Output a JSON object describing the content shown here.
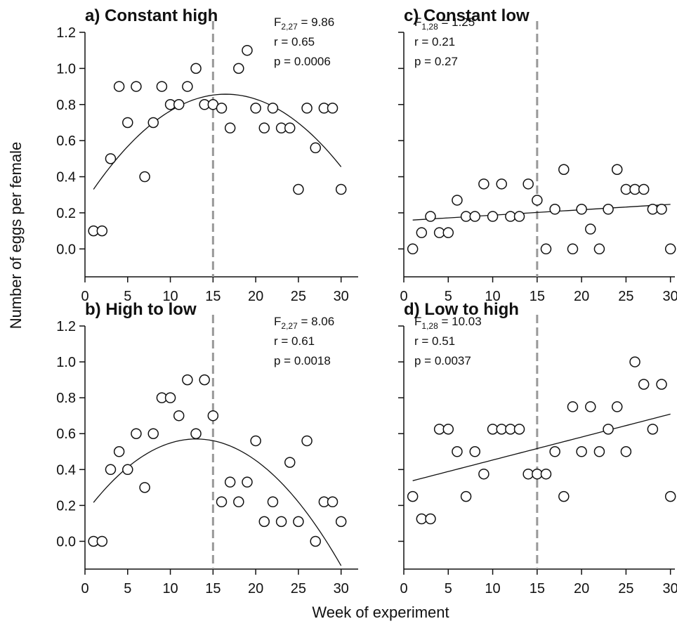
{
  "figure": {
    "ylabel": "Number of eggs per female",
    "xlabel": "Week of experiment"
  },
  "chart_data": [
    {
      "id": "a",
      "type": "scatter",
      "title": "a) Constant high",
      "stats": {
        "F_main": "F",
        "F_sub": "2,27",
        "F_val": " = 9.86",
        "r": "r = 0.65",
        "p": "p = 0.0006"
      },
      "xlim": [
        0,
        32
      ],
      "ylim": [
        -0.1,
        1.2
      ],
      "xticks": [
        0,
        5,
        10,
        15,
        20,
        25,
        30
      ],
      "yticks": [
        0.0,
        0.2,
        0.4,
        0.6,
        0.8,
        1.0,
        1.2
      ],
      "show_yticklabels": true,
      "vline_x": 15,
      "points": [
        [
          1,
          0.1
        ],
        [
          2,
          0.1
        ],
        [
          3,
          0.5
        ],
        [
          4,
          0.9
        ],
        [
          5,
          0.7
        ],
        [
          6,
          0.9
        ],
        [
          7,
          0.4
        ],
        [
          8,
          0.7
        ],
        [
          9,
          0.9
        ],
        [
          10,
          0.8
        ],
        [
          11,
          0.8
        ],
        [
          12,
          0.9
        ],
        [
          13,
          1.0
        ],
        [
          14,
          0.8
        ],
        [
          15,
          0.8
        ],
        [
          16,
          0.78
        ],
        [
          17,
          0.67
        ],
        [
          18,
          1.0
        ],
        [
          19,
          1.1
        ],
        [
          20,
          0.78
        ],
        [
          21,
          0.67
        ],
        [
          22,
          0.78
        ],
        [
          23,
          0.67
        ],
        [
          24,
          0.67
        ],
        [
          25,
          0.33
        ],
        [
          26,
          0.78
        ],
        [
          27,
          0.56
        ],
        [
          28,
          0.78
        ],
        [
          29,
          0.78
        ],
        [
          30,
          0.33
        ]
      ],
      "fit": {
        "kind": "quadratic",
        "coef": [
          0.26,
          0.0725,
          -0.0022
        ],
        "x_range": [
          1,
          30
        ]
      }
    },
    {
      "id": "c",
      "type": "scatter",
      "title": "c) Constant low",
      "stats": {
        "F_main": "F",
        "F_sub": "1,28",
        "F_val": " = 1.25",
        "r": "r = 0.21",
        "p": "p = 0.27"
      },
      "xlim": [
        0,
        30.5
      ],
      "ylim": [
        -0.1,
        1.2
      ],
      "xticks": [
        0,
        5,
        10,
        15,
        20,
        25,
        30
      ],
      "yticks": [
        0.0,
        0.2,
        0.4,
        0.6,
        0.8,
        1.0,
        1.2
      ],
      "show_yticklabels": false,
      "vline_x": 15,
      "points": [
        [
          1,
          0.0
        ],
        [
          2,
          0.09
        ],
        [
          3,
          0.18
        ],
        [
          4,
          0.09
        ],
        [
          5,
          0.09
        ],
        [
          6,
          0.27
        ],
        [
          7,
          0.18
        ],
        [
          8,
          0.18
        ],
        [
          9,
          0.36
        ],
        [
          10,
          0.18
        ],
        [
          11,
          0.36
        ],
        [
          12,
          0.18
        ],
        [
          13,
          0.18
        ],
        [
          14,
          0.36
        ],
        [
          15,
          0.27
        ],
        [
          16,
          0.0
        ],
        [
          17,
          0.22
        ],
        [
          18,
          0.44
        ],
        [
          19,
          0.0
        ],
        [
          20,
          0.22
        ],
        [
          21,
          0.11
        ],
        [
          22,
          0.0
        ],
        [
          23,
          0.22
        ],
        [
          24,
          0.44
        ],
        [
          25,
          0.33
        ],
        [
          26,
          0.33
        ],
        [
          27,
          0.33
        ],
        [
          28,
          0.22
        ],
        [
          29,
          0.22
        ],
        [
          30,
          0.0
        ]
      ],
      "fit": {
        "kind": "linear",
        "coef": [
          0.157,
          0.003
        ],
        "x_range": [
          1,
          30
        ]
      }
    },
    {
      "id": "b",
      "type": "scatter",
      "title": "b) High to low",
      "stats": {
        "F_main": "F",
        "F_sub": "2,27",
        "F_val": " = 8.06",
        "r": "r = 0.61",
        "p": "p = 0.0018"
      },
      "xlim": [
        0,
        32
      ],
      "ylim": [
        -0.1,
        1.2
      ],
      "xticks": [
        0,
        5,
        10,
        15,
        20,
        25,
        30
      ],
      "yticks": [
        0.0,
        0.2,
        0.4,
        0.6,
        0.8,
        1.0,
        1.2
      ],
      "show_yticklabels": true,
      "vline_x": 15,
      "points": [
        [
          1,
          0.0
        ],
        [
          2,
          0.0
        ],
        [
          3,
          0.4
        ],
        [
          4,
          0.5
        ],
        [
          5,
          0.4
        ],
        [
          6,
          0.6
        ],
        [
          7,
          0.3
        ],
        [
          8,
          0.6
        ],
        [
          9,
          0.8
        ],
        [
          10,
          0.8
        ],
        [
          11,
          0.7
        ],
        [
          12,
          0.9
        ],
        [
          13,
          0.6
        ],
        [
          14,
          0.9
        ],
        [
          15,
          0.7
        ],
        [
          16,
          0.22
        ],
        [
          17,
          0.33
        ],
        [
          18,
          0.22
        ],
        [
          19,
          0.33
        ],
        [
          20,
          0.56
        ],
        [
          21,
          0.11
        ],
        [
          22,
          0.22
        ],
        [
          23,
          0.11
        ],
        [
          24,
          0.44
        ],
        [
          25,
          0.11
        ],
        [
          26,
          0.56
        ],
        [
          27,
          0.0
        ],
        [
          28,
          0.22
        ],
        [
          29,
          0.22
        ],
        [
          30,
          0.11
        ]
      ],
      "fit": {
        "kind": "quadratic",
        "coef": [
          0.155,
          0.0638,
          -0.00245
        ],
        "x_range": [
          1,
          30
        ]
      }
    },
    {
      "id": "d",
      "type": "scatter",
      "title": "d) Low to high",
      "stats": {
        "F_main": "F",
        "F_sub": "1,28",
        "F_val": " = 10.03",
        "r": "r = 0.51",
        "p": "p = 0.0037"
      },
      "xlim": [
        0,
        30.5
      ],
      "ylim": [
        -0.1,
        1.2
      ],
      "xticks": [
        0,
        5,
        10,
        15,
        20,
        25,
        30
      ],
      "yticks": [
        0.0,
        0.2,
        0.4,
        0.6,
        0.8,
        1.0,
        1.2
      ],
      "show_yticklabels": false,
      "vline_x": 15,
      "points": [
        [
          1,
          0.25
        ],
        [
          2,
          0.125
        ],
        [
          3,
          0.125
        ],
        [
          4,
          0.625
        ],
        [
          5,
          0.625
        ],
        [
          6,
          0.5
        ],
        [
          7,
          0.25
        ],
        [
          8,
          0.5
        ],
        [
          9,
          0.375
        ],
        [
          10,
          0.625
        ],
        [
          11,
          0.625
        ],
        [
          12,
          0.625
        ],
        [
          13,
          0.625
        ],
        [
          14,
          0.375
        ],
        [
          15,
          0.375
        ],
        [
          16,
          0.375
        ],
        [
          17,
          0.5
        ],
        [
          18,
          0.25
        ],
        [
          19,
          0.75
        ],
        [
          20,
          0.5
        ],
        [
          21,
          0.75
        ],
        [
          22,
          0.5
        ],
        [
          23,
          0.625
        ],
        [
          24,
          0.75
        ],
        [
          25,
          0.5
        ],
        [
          26,
          1.0
        ],
        [
          27,
          0.875
        ],
        [
          28,
          0.625
        ],
        [
          29,
          0.875
        ],
        [
          30,
          0.25
        ]
      ],
      "fit": {
        "kind": "linear",
        "coef": [
          0.325,
          0.0128
        ],
        "x_range": [
          1,
          30
        ]
      }
    }
  ]
}
